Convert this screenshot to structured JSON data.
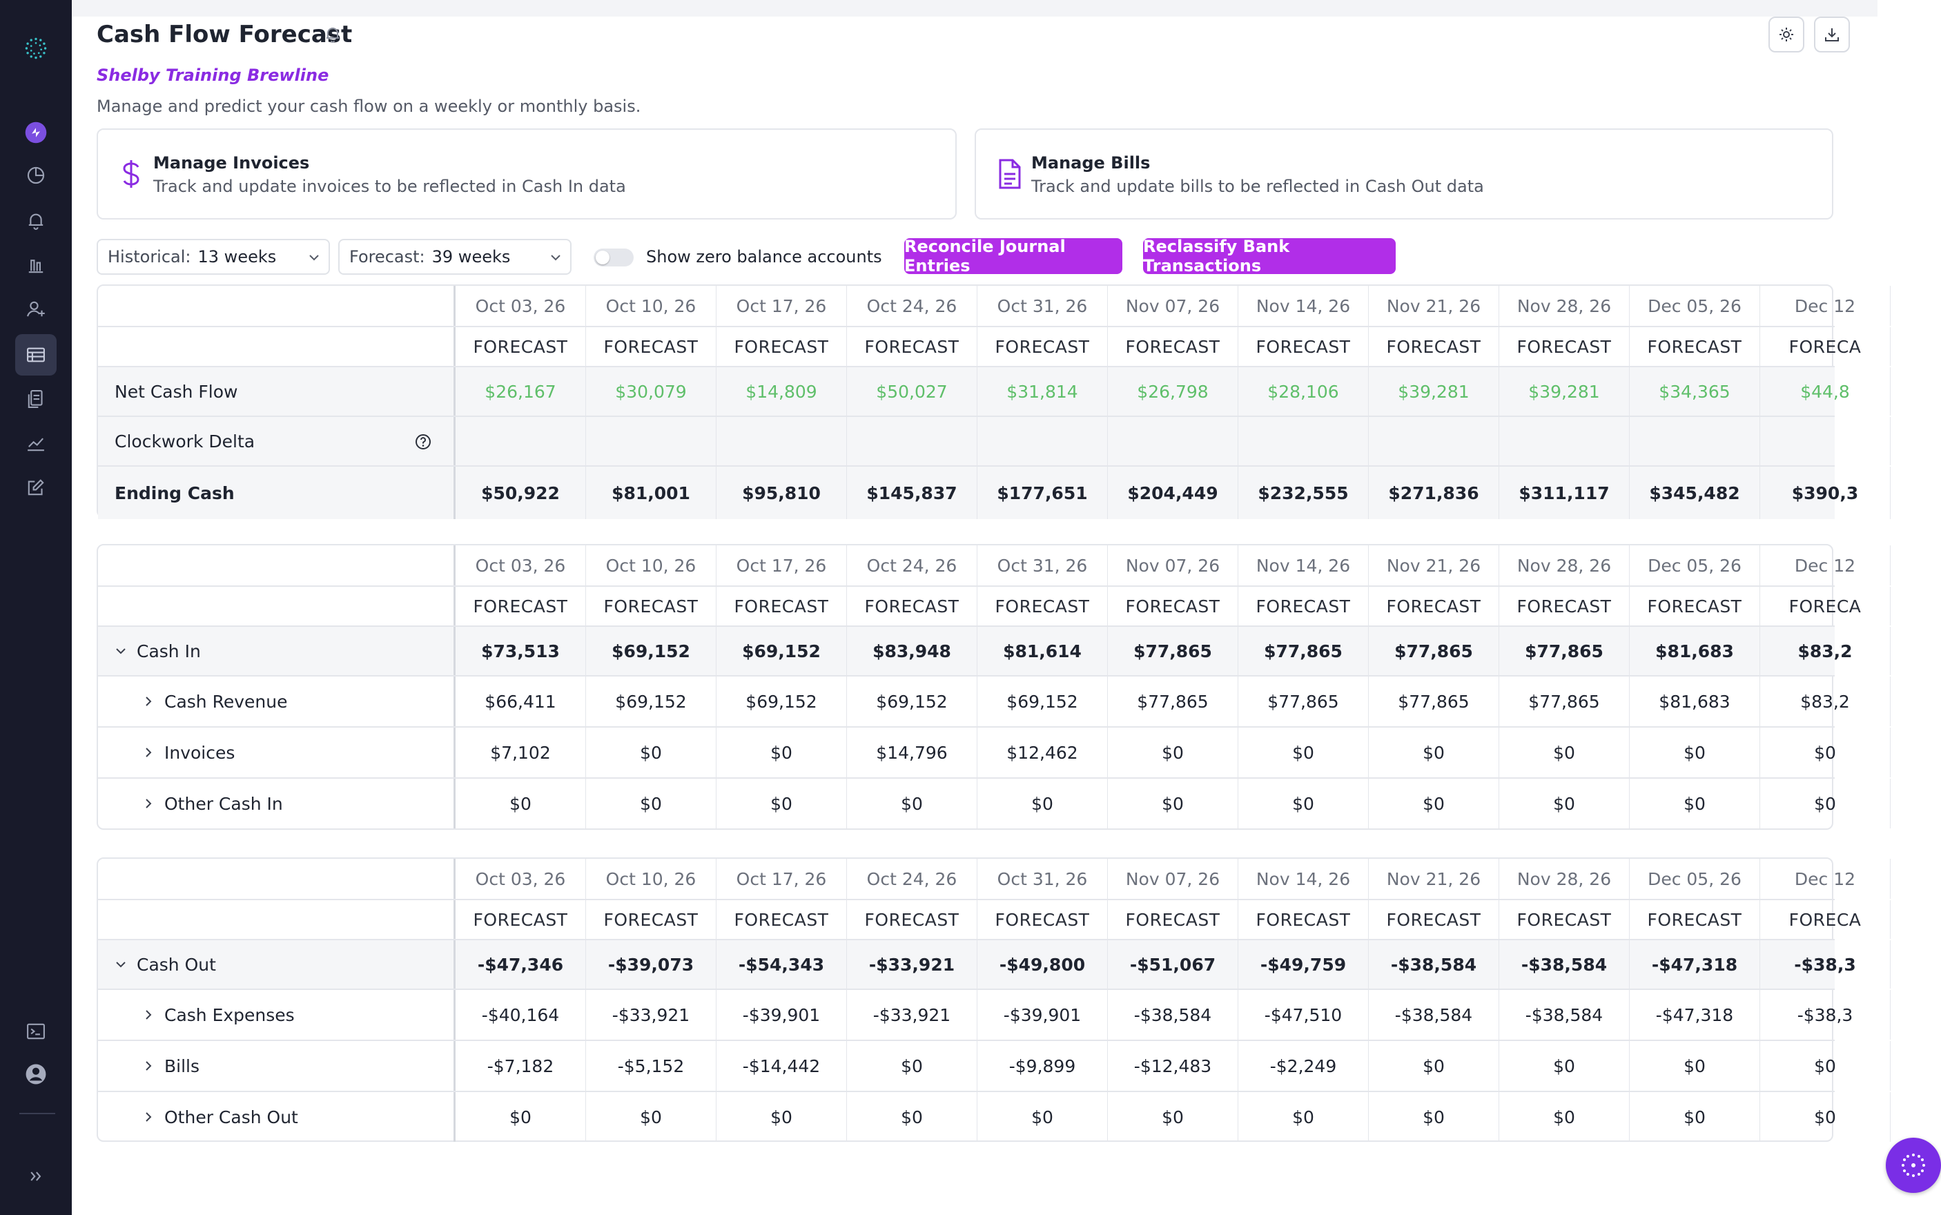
{
  "sidebar": {
    "icons": [
      "logo-icon",
      "nav-ai-icon",
      "nav-dashboard-icon",
      "nav-notifications-icon",
      "nav-reports-icon",
      "nav-users-icon",
      "nav-cash-flow-icon",
      "nav-documents-icon",
      "nav-analytics-icon",
      "nav-edit-icon",
      "terminal-icon",
      "profile-icon",
      "expand-icon"
    ]
  },
  "header": {
    "title": "Cash Flow Forecast",
    "org": "Shelby Training Brewline",
    "subtitle": "Manage and predict your cash flow on a weekly or monthly basis."
  },
  "cards": {
    "invoices": {
      "title": "Manage Invoices",
      "desc": "Track and update invoices to be reflected in Cash In data",
      "icon": "dollar-icon"
    },
    "bills": {
      "title": "Manage Bills",
      "desc": "Track and update bills to be reflected in Cash Out data",
      "icon": "document-icon"
    }
  },
  "controls": {
    "historical_label": "Historical:",
    "historical_value": "13 weeks",
    "forecast_label": "Forecast:",
    "forecast_value": "39 weeks",
    "toggle_label": "Show zero balance accounts",
    "toggle_on": false,
    "reconcile_label": "Reconcile Journal Entries",
    "reclassify_label": "Reclassify Bank Transactions"
  },
  "colors": {
    "accent": "#b12ee8",
    "positive": "#5fbf6a",
    "sidebar": "#181a2a"
  },
  "dates": [
    "Oct 03, 26",
    "Oct 10, 26",
    "Oct 17, 26",
    "Oct 24, 26",
    "Oct 31, 26",
    "Nov 07, 26",
    "Nov 14, 26",
    "Nov 21, 26",
    "Nov 28, 26",
    "Dec 05, 26",
    "Dec 12"
  ],
  "forecast_tag": [
    "FORECAST",
    "FORECAST",
    "FORECAST",
    "FORECAST",
    "FORECAST",
    "FORECAST",
    "FORECAST",
    "FORECAST",
    "FORECAST",
    "FORECAST",
    "FORECA"
  ],
  "summary": {
    "net_cash_flow": {
      "label": "Net Cash Flow",
      "values": [
        "$26,167",
        "$30,079",
        "$14,809",
        "$50,027",
        "$31,814",
        "$26,798",
        "$28,106",
        "$39,281",
        "$39,281",
        "$34,365",
        "$44,8"
      ]
    },
    "clockwork_delta": {
      "label": "Clockwork Delta",
      "values": [
        "",
        "",
        "",
        "",
        "",
        "",
        "",
        "",
        "",
        "",
        ""
      ]
    },
    "ending_cash": {
      "label": "Ending Cash",
      "values": [
        "$50,922",
        "$81,001",
        "$95,810",
        "$145,837",
        "$177,651",
        "$204,449",
        "$232,555",
        "$271,836",
        "$311,117",
        "$345,482",
        "$390,3"
      ]
    }
  },
  "cash_in": {
    "label": "Cash In",
    "values": [
      "$73,513",
      "$69,152",
      "$69,152",
      "$83,948",
      "$81,614",
      "$77,865",
      "$77,865",
      "$77,865",
      "$77,865",
      "$81,683",
      "$83,2"
    ],
    "rows": [
      {
        "label": "Cash Revenue",
        "values": [
          "$66,411",
          "$69,152",
          "$69,152",
          "$69,152",
          "$69,152",
          "$77,865",
          "$77,865",
          "$77,865",
          "$77,865",
          "$81,683",
          "$83,2"
        ]
      },
      {
        "label": "Invoices",
        "values": [
          "$7,102",
          "$0",
          "$0",
          "$14,796",
          "$12,462",
          "$0",
          "$0",
          "$0",
          "$0",
          "$0",
          "$0"
        ]
      },
      {
        "label": "Other Cash In",
        "values": [
          "$0",
          "$0",
          "$0",
          "$0",
          "$0",
          "$0",
          "$0",
          "$0",
          "$0",
          "$0",
          "$0"
        ]
      }
    ]
  },
  "cash_out": {
    "label": "Cash Out",
    "values": [
      "-$47,346",
      "-$39,073",
      "-$54,343",
      "-$33,921",
      "-$49,800",
      "-$51,067",
      "-$49,759",
      "-$38,584",
      "-$38,584",
      "-$47,318",
      "-$38,3"
    ],
    "rows": [
      {
        "label": "Cash Expenses",
        "values": [
          "-$40,164",
          "-$33,921",
          "-$39,901",
          "-$33,921",
          "-$39,901",
          "-$38,584",
          "-$47,510",
          "-$38,584",
          "-$38,584",
          "-$47,318",
          "-$38,3"
        ]
      },
      {
        "label": "Bills",
        "values": [
          "-$7,182",
          "-$5,152",
          "-$14,442",
          "$0",
          "-$9,899",
          "-$12,483",
          "-$2,249",
          "$0",
          "$0",
          "$0",
          "$0"
        ]
      },
      {
        "label": "Other Cash Out",
        "values": [
          "$0",
          "$0",
          "$0",
          "$0",
          "$0",
          "$0",
          "$0",
          "$0",
          "$0",
          "$0",
          "$0"
        ]
      }
    ]
  }
}
